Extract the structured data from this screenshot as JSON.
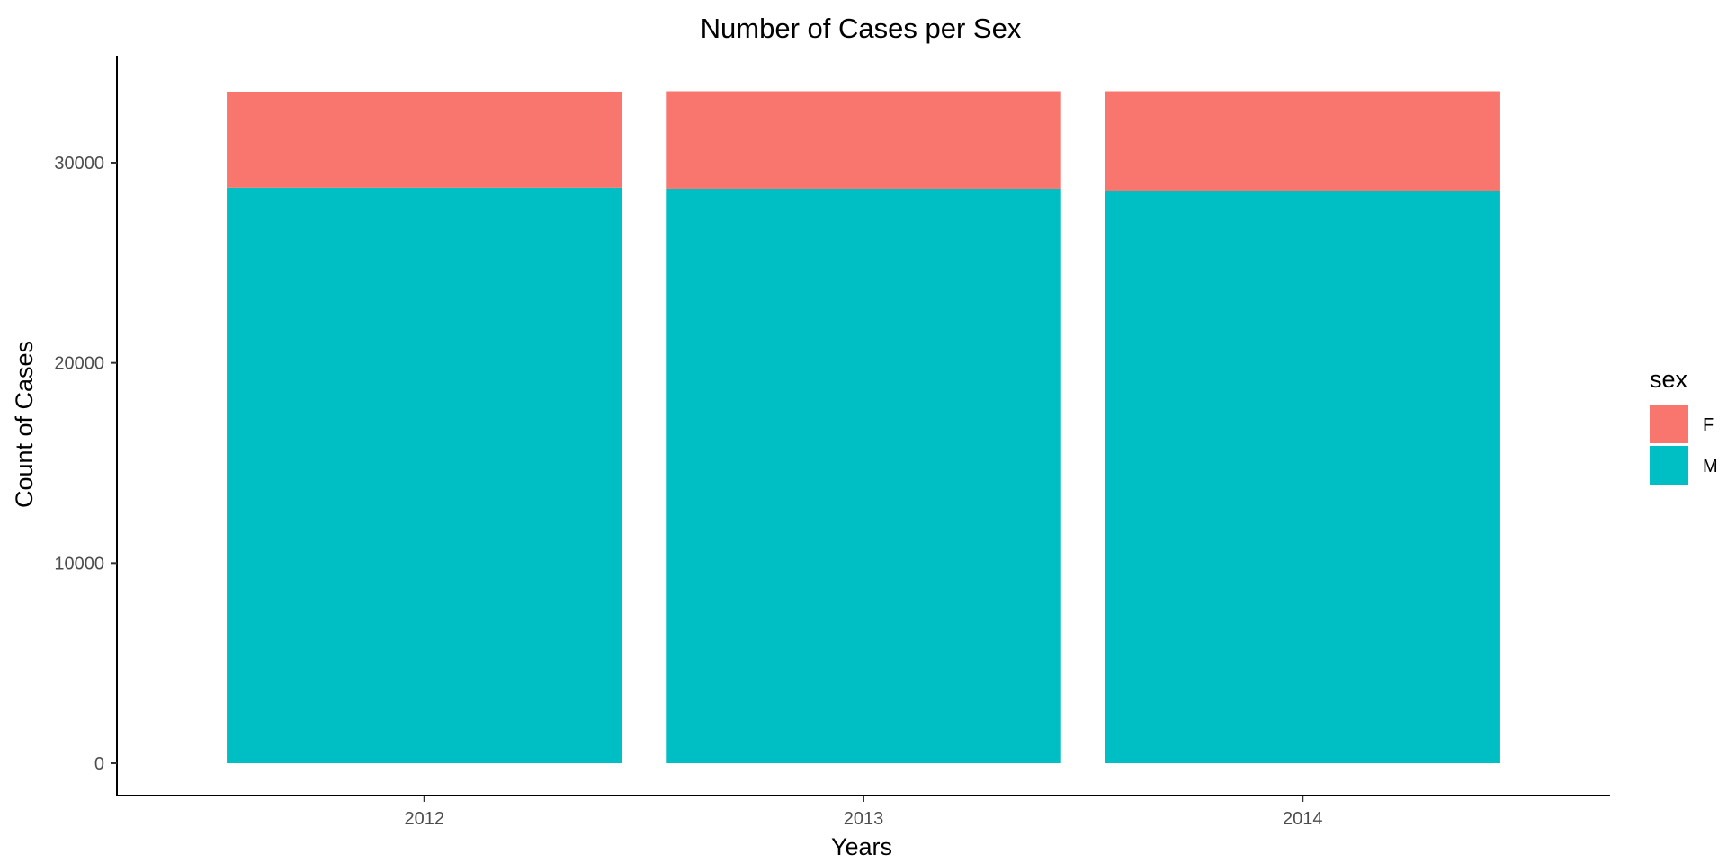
{
  "chart_data": {
    "type": "bar",
    "stacked": true,
    "title": "Number of Cases per Sex",
    "xlabel": "Years",
    "ylabel": "Count of Cases",
    "categories": [
      "2012",
      "2013",
      "2014"
    ],
    "ylim": [
      0,
      35500
    ],
    "yticks": [
      0,
      10000,
      20000,
      30000
    ],
    "series": [
      {
        "name": "M",
        "values": [
          28750,
          28700,
          28600
        ],
        "color": "#00BFC4"
      },
      {
        "name": "F",
        "values": [
          4800,
          4870,
          4970
        ],
        "color": "#F8766D"
      }
    ],
    "legend": {
      "title": "sex",
      "position": "right",
      "entries": [
        "F",
        "M"
      ]
    },
    "grid": false
  }
}
